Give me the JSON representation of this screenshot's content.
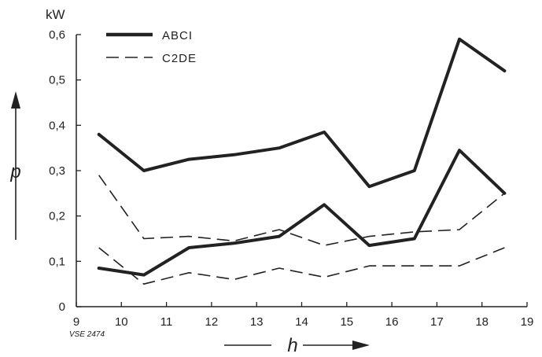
{
  "chart_data": {
    "type": "line",
    "y_unit": "kW",
    "ylabel": "p",
    "xlabel": "h",
    "reference": "VSE 2474",
    "xlim": [
      9,
      19
    ],
    "ylim": [
      0,
      0.6
    ],
    "x_ticks": [
      9,
      10,
      11,
      12,
      13,
      14,
      15,
      16,
      17,
      18,
      19
    ],
    "x_tick_labels": [
      "9",
      "10",
      "11",
      "12",
      "13",
      "14",
      "15",
      "16",
      "17",
      "18",
      "19"
    ],
    "y_ticks": [
      0,
      0.1,
      0.2,
      0.3,
      0.4,
      0.5,
      0.6
    ],
    "y_tick_labels": [
      "0",
      "0,1",
      "0,2",
      "0,3",
      "0,4",
      "0,5",
      "0,6"
    ],
    "grid": false,
    "legend_position": "top-left",
    "legend": [
      {
        "label": "ABCI",
        "style": "solid"
      },
      {
        "label": "C2DE",
        "style": "dashed"
      }
    ],
    "series": [
      {
        "legend": 0,
        "style": "solid",
        "x": [
          9.5,
          10.5,
          11.5,
          12.5,
          13.5,
          14.5,
          15.5,
          16.5,
          17.5,
          18.5
        ],
        "y": [
          0.38,
          0.3,
          0.325,
          0.335,
          0.35,
          0.385,
          0.265,
          0.3,
          0.59,
          0.52
        ]
      },
      {
        "legend": 0,
        "style": "solid",
        "x": [
          9.5,
          10.5,
          11.5,
          12.5,
          13.5,
          14.5,
          15.5,
          16.5,
          17.5,
          18.5
        ],
        "y": [
          0.085,
          0.07,
          0.13,
          0.14,
          0.155,
          0.225,
          0.135,
          0.15,
          0.345,
          0.25
        ]
      },
      {
        "legend": 1,
        "style": "dashed",
        "x": [
          9.5,
          10.5,
          11.5,
          12.5,
          13.5,
          14.5,
          15.5,
          16.5,
          17.5,
          18.5
        ],
        "y": [
          0.29,
          0.15,
          0.155,
          0.145,
          0.17,
          0.135,
          0.155,
          0.165,
          0.17,
          0.25
        ]
      },
      {
        "legend": 1,
        "style": "dashed",
        "x": [
          9.5,
          10.5,
          11.5,
          12.5,
          13.5,
          14.5,
          15.5,
          16.5,
          17.5,
          18.5
        ],
        "y": [
          0.13,
          0.05,
          0.075,
          0.06,
          0.085,
          0.065,
          0.09,
          0.09,
          0.09,
          0.13
        ]
      }
    ]
  }
}
